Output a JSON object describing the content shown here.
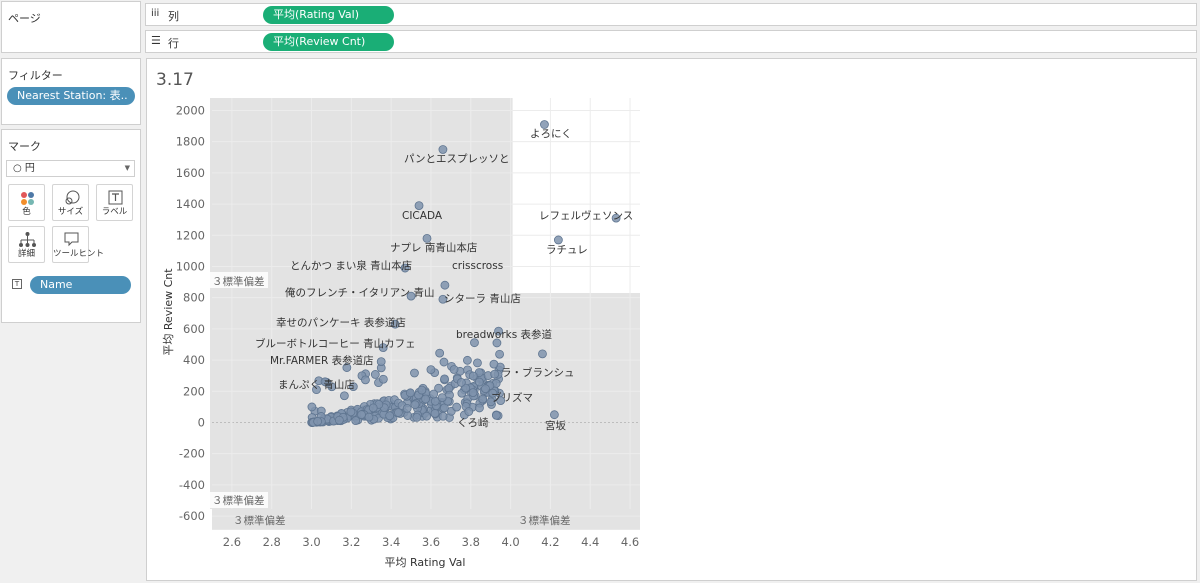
{
  "pages_shelf": {
    "title": "ページ"
  },
  "columns_shelf": {
    "label": "列",
    "pill": "平均(Rating Val)"
  },
  "rows_shelf": {
    "label": "行",
    "pill": "平均(Review Cnt)"
  },
  "filters": {
    "title": "フィルター",
    "pill": "Nearest Station: 表.."
  },
  "marks": {
    "title": "マーク",
    "mark_type": "円",
    "buttons": [
      {
        "label": "色",
        "icon": "color-icon"
      },
      {
        "label": "サイズ",
        "icon": "size-icon"
      },
      {
        "label": "ラベル",
        "icon": "label-icon"
      },
      {
        "label": "詳細",
        "icon": "detail-icon"
      },
      {
        "label": "ツールヒント",
        "icon": "tooltip-icon"
      }
    ],
    "name_pill": "Name"
  },
  "view": {
    "caption": "3.17"
  },
  "colors": {
    "pill_green": "#1aae76",
    "pill_blue": "#4a90b8",
    "point": "#7f93ad",
    "point_stroke": "#5f7590",
    "band": "#e3e3e3"
  },
  "chart_data": {
    "type": "scatter",
    "xlabel": "平均 Rating Val",
    "ylabel": "平均 Review Cnt",
    "xlim": [
      2.5,
      4.65
    ],
    "ylim": [
      -670,
      2080
    ],
    "x_ticks": [
      2.6,
      2.8,
      3.0,
      3.2,
      3.4,
      3.6,
      3.8,
      4.0,
      4.2,
      4.4,
      4.6
    ],
    "y_ticks": [
      -600,
      -400,
      -200,
      0,
      200,
      400,
      600,
      800,
      1000,
      1200,
      1400,
      1600,
      1800,
      2000
    ],
    "grid": true,
    "zero_line": true,
    "bands": [
      {
        "axis": "x",
        "from": 2.49,
        "to": 4.01,
        "label": "３標準偏差"
      },
      {
        "axis": "y",
        "from": -560,
        "to": 830,
        "label": "３標準偏差"
      }
    ],
    "labeled_points": [
      {
        "name": "よろにく",
        "x": 4.17,
        "y": 1910
      },
      {
        "name": "パンとエスプレッソと",
        "x": 3.66,
        "y": 1750
      },
      {
        "name": "CICADA",
        "x": 3.54,
        "y": 1390
      },
      {
        "name": "レフェルヴェソンス",
        "x": 4.53,
        "y": 1310
      },
      {
        "name": "ナプレ 南青山本店",
        "x": 3.58,
        "y": 1180
      },
      {
        "name": "ラチュレ",
        "x": 4.24,
        "y": 1170
      },
      {
        "name": "とんかつ まい泉 青山本店",
        "x": 3.47,
        "y": 990
      },
      {
        "name": "crisscross",
        "x": 3.67,
        "y": 880
      },
      {
        "name": "俺のフレンチ・イタリアン 青山",
        "x": 3.5,
        "y": 810
      },
      {
        "name": "シターラ 青山店",
        "x": 3.66,
        "y": 790
      },
      {
        "name": "幸せのパンケーキ 表参道店",
        "x": 3.42,
        "y": 630
      },
      {
        "name": "breadworks 表参道",
        "x": 4.16,
        "y": 440
      },
      {
        "name": "ブルーボトルコーヒー 青山カフェ",
        "x": 3.36,
        "y": 480
      },
      {
        "name": "Mr.FARMER 表参道店",
        "x": 3.35,
        "y": 390
      },
      {
        "name": "ラ・ブランシュ",
        "x": 3.92,
        "y": 310
      },
      {
        "name": "まんぷく 青山店",
        "x": 3.21,
        "y": 230
      },
      {
        "name": "ブリズマ",
        "x": 3.86,
        "y": 150
      },
      {
        "name": "くろ崎",
        "x": 3.79,
        "y": 70
      },
      {
        "name": "宮坂",
        "x": 4.22,
        "y": 50
      }
    ]
  }
}
